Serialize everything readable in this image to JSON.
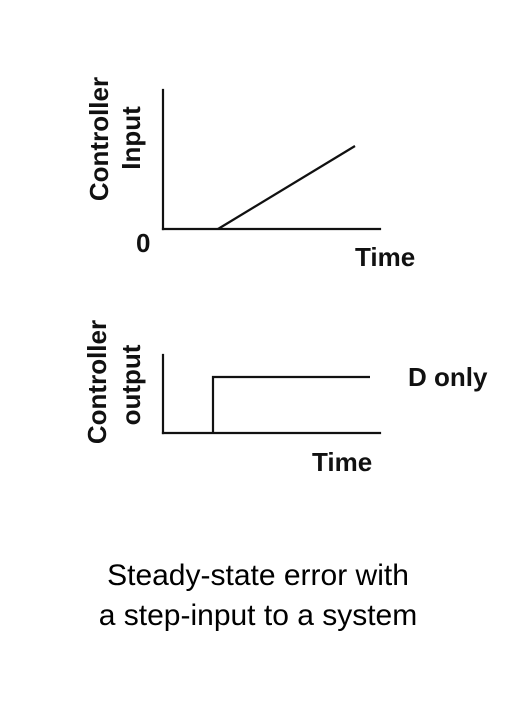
{
  "top_plot": {
    "ylabel_line1": "Controller",
    "ylabel_line2": "Input",
    "origin_label": "0",
    "xlabel": "Time"
  },
  "bottom_plot": {
    "ylabel_line1": "Controller",
    "ylabel_line2": "output",
    "xlabel": "Time",
    "curve_label": "D only"
  },
  "caption": {
    "line1": "Steady-state error with",
    "line2": "a step-input to a system"
  }
}
